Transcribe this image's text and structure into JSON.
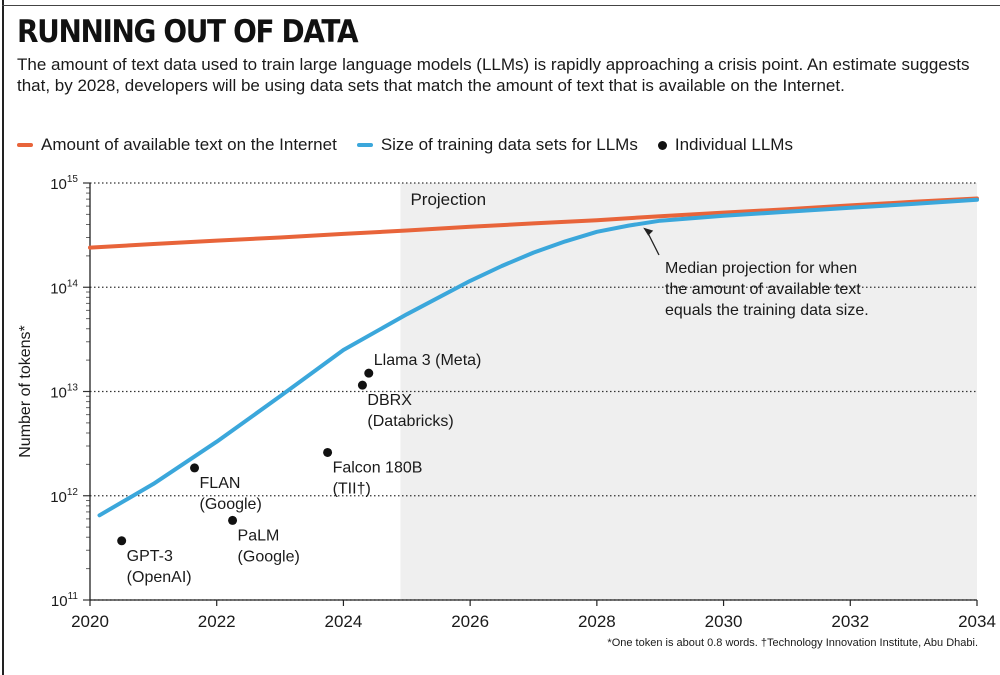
{
  "header": {
    "title": "RUNNING OUT OF DATA",
    "subtitle": "The amount of text data used to train large language models (LLMs) is rapidly approaching a crisis point. An estimate suggests that, by 2028, developers will be using data sets that match the amount of text that is available on the Internet."
  },
  "legend": {
    "items": [
      {
        "label": "Amount of available text on the Internet",
        "marker": "line",
        "color": "#E8643A"
      },
      {
        "label": "Size of training data sets for LLMs",
        "marker": "line",
        "color": "#3BA7DB"
      },
      {
        "label": "Individual LLMs",
        "marker": "dot",
        "color": "#111111"
      }
    ]
  },
  "footnote": "*One token is about 0.8 words. †Technology Innovation Institute, Abu Dhabi.",
  "chart_data": {
    "type": "line",
    "ylabel": "Number of tokens*",
    "y_scale": "log",
    "ylim": [
      100000000000.0,
      1000000000000000.0
    ],
    "y_ticks": [
      {
        "value": 1000000000000000.0,
        "base": "10",
        "exp": "15"
      },
      {
        "value": 100000000000000.0,
        "base": "10",
        "exp": "14"
      },
      {
        "value": 10000000000000.0,
        "base": "10",
        "exp": "13"
      },
      {
        "value": 1000000000000.0,
        "base": "10",
        "exp": "12"
      },
      {
        "value": 100000000000.0,
        "base": "10",
        "exp": "11"
      }
    ],
    "xlim": [
      2020,
      2034
    ],
    "x_ticks": [
      2020,
      2022,
      2024,
      2026,
      2028,
      2030,
      2032,
      2034
    ],
    "grid": "horizontal-dotted",
    "projection": {
      "label": "Projection",
      "start": 2024.9,
      "end": 2034
    },
    "series": [
      {
        "name": "Amount of available text on the Internet",
        "color": "#E8643A",
        "x": [
          2020,
          2021,
          2022,
          2023,
          2024,
          2025,
          2026,
          2027,
          2028,
          2029,
          2030,
          2031,
          2032,
          2033,
          2034
        ],
        "y": [
          240000000000000.0,
          260000000000000.0,
          280000000000000.0,
          300000000000000.0,
          325000000000000.0,
          350000000000000.0,
          380000000000000.0,
          410000000000000.0,
          440000000000000.0,
          480000000000000.0,
          520000000000000.0,
          560000000000000.0,
          610000000000000.0,
          660000000000000.0,
          710000000000000.0
        ]
      },
      {
        "name": "Size of training data sets for LLMs",
        "color": "#3BA7DB",
        "x": [
          2020.15,
          2021,
          2022,
          2023,
          2024,
          2025,
          2026,
          2026.5,
          2027,
          2027.5,
          2028,
          2028.5,
          2029,
          2029.5,
          2030,
          2031,
          2032,
          2033,
          2034
        ],
        "y": [
          650000000000.0,
          1300000000000.0,
          3300000000000.0,
          9000000000000.0,
          25000000000000.0,
          55000000000000.0,
          115000000000000.0,
          160000000000000.0,
          215000000000000.0,
          275000000000000.0,
          340000000000000.0,
          390000000000000.0,
          435000000000000.0,
          460000000000000.0,
          485000000000000.0,
          530000000000000.0,
          580000000000000.0,
          630000000000000.0,
          690000000000000.0
        ]
      }
    ],
    "points": [
      {
        "name": "GPT-3",
        "org": "(OpenAI)",
        "x": 2020.5,
        "y": 370000000000.0
      },
      {
        "name": "FLAN",
        "org": "(Google)",
        "x": 2021.65,
        "y": 1850000000000.0
      },
      {
        "name": "PaLM",
        "org": "(Google)",
        "x": 2022.25,
        "y": 580000000000.0
      },
      {
        "name": "Falcon 180B",
        "org": "(TII†)",
        "x": 2023.75,
        "y": 2600000000000.0
      },
      {
        "name": "Llama 3 (Meta)",
        "org": "",
        "x": 2024.4,
        "y": 15000000000000.0
      },
      {
        "name": "DBRX",
        "org": "(Databricks)",
        "x": 2024.3,
        "y": 11500000000000.0
      }
    ],
    "annotation": {
      "lines": [
        "Median projection for when",
        "the amount of available text",
        "equals the training data size."
      ],
      "target_x": 2028.7,
      "target_y": 390000000000000.0
    }
  }
}
